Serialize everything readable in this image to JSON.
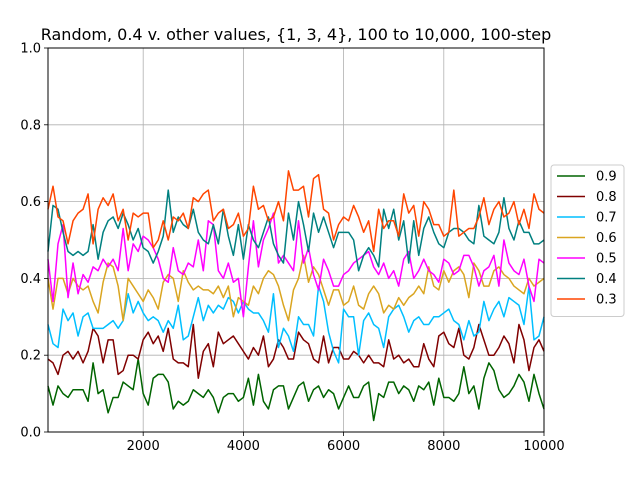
{
  "chart_data": {
    "type": "line",
    "title": "Random, 0.4 v. other values, {1, 3, 4}, 100 to 10,000, 100-step",
    "xlabel": "",
    "ylabel": "",
    "xlim": [
      100,
      10000
    ],
    "ylim": [
      0.0,
      1.0
    ],
    "x_ticks": [
      2000,
      4000,
      6000,
      8000,
      10000
    ],
    "x_tick_labels": [
      "2000",
      "4000",
      "6000",
      "8000",
      "10000"
    ],
    "y_ticks": [
      0.0,
      0.2,
      0.4,
      0.6,
      0.8,
      1.0
    ],
    "y_tick_labels": [
      "0.0",
      "0.2",
      "0.4",
      "0.6",
      "0.8",
      "1.0"
    ],
    "grid": true,
    "legend_position": "center-right-outside",
    "x": {
      "start": 100,
      "step": 100,
      "count": 100
    },
    "series": [
      {
        "name": "0.9",
        "color": "#006400",
        "values": [
          0.12,
          0.07,
          0.12,
          0.1,
          0.09,
          0.11,
          0.11,
          0.11,
          0.08,
          0.18,
          0.1,
          0.11,
          0.05,
          0.09,
          0.09,
          0.13,
          0.12,
          0.11,
          0.19,
          0.1,
          0.07,
          0.14,
          0.15,
          0.15,
          0.13,
          0.06,
          0.08,
          0.07,
          0.08,
          0.11,
          0.1,
          0.09,
          0.11,
          0.09,
          0.05,
          0.09,
          0.1,
          0.1,
          0.08,
          0.09,
          0.14,
          0.07,
          0.15,
          0.08,
          0.06,
          0.11,
          0.12,
          0.12,
          0.06,
          0.09,
          0.12,
          0.13,
          0.08,
          0.11,
          0.12,
          0.09,
          0.11,
          0.1,
          0.06,
          0.09,
          0.12,
          0.09,
          0.09,
          0.12,
          0.13,
          0.03,
          0.1,
          0.09,
          0.13,
          0.13,
          0.1,
          0.12,
          0.11,
          0.08,
          0.12,
          0.11,
          0.13,
          0.07,
          0.14,
          0.09,
          0.09,
          0.08,
          0.1,
          0.17,
          0.1,
          0.12,
          0.06,
          0.14,
          0.18,
          0.16,
          0.11,
          0.09,
          0.1,
          0.12,
          0.15,
          0.13,
          0.08,
          0.15,
          0.1,
          0.06
        ]
      },
      {
        "name": "0.8",
        "color": "#800000",
        "values": [
          0.19,
          0.18,
          0.15,
          0.2,
          0.21,
          0.19,
          0.21,
          0.18,
          0.21,
          0.27,
          0.25,
          0.18,
          0.24,
          0.24,
          0.15,
          0.16,
          0.2,
          0.2,
          0.19,
          0.24,
          0.26,
          0.23,
          0.25,
          0.21,
          0.27,
          0.19,
          0.18,
          0.18,
          0.17,
          0.28,
          0.14,
          0.21,
          0.23,
          0.17,
          0.26,
          0.23,
          0.24,
          0.25,
          0.23,
          0.21,
          0.19,
          0.22,
          0.2,
          0.25,
          0.17,
          0.19,
          0.24,
          0.22,
          0.19,
          0.19,
          0.26,
          0.24,
          0.23,
          0.19,
          0.18,
          0.25,
          0.18,
          0.22,
          0.22,
          0.19,
          0.19,
          0.21,
          0.2,
          0.18,
          0.2,
          0.18,
          0.18,
          0.17,
          0.24,
          0.19,
          0.2,
          0.18,
          0.19,
          0.17,
          0.17,
          0.23,
          0.19,
          0.17,
          0.25,
          0.26,
          0.23,
          0.22,
          0.27,
          0.2,
          0.19,
          0.22,
          0.28,
          0.24,
          0.2,
          0.2,
          0.22,
          0.25,
          0.23,
          0.18,
          0.28,
          0.24,
          0.16,
          0.22,
          0.24,
          0.21
        ]
      },
      {
        "name": "0.7",
        "color": "#00BFFF",
        "values": [
          0.28,
          0.23,
          0.22,
          0.32,
          0.29,
          0.31,
          0.25,
          0.3,
          0.31,
          0.27,
          0.27,
          0.27,
          0.28,
          0.29,
          0.27,
          0.29,
          0.36,
          0.31,
          0.34,
          0.31,
          0.29,
          0.3,
          0.29,
          0.26,
          0.29,
          0.27,
          0.33,
          0.24,
          0.25,
          0.3,
          0.35,
          0.29,
          0.33,
          0.31,
          0.33,
          0.32,
          0.35,
          0.34,
          0.31,
          0.34,
          0.32,
          0.31,
          0.31,
          0.29,
          0.26,
          0.36,
          0.22,
          0.27,
          0.25,
          0.21,
          0.3,
          0.28,
          0.28,
          0.25,
          0.38,
          0.34,
          0.26,
          0.21,
          0.18,
          0.32,
          0.3,
          0.3,
          0.2,
          0.29,
          0.31,
          0.28,
          0.27,
          0.22,
          0.3,
          0.32,
          0.33,
          0.3,
          0.26,
          0.29,
          0.3,
          0.28,
          0.28,
          0.3,
          0.3,
          0.31,
          0.32,
          0.29,
          0.28,
          0.24,
          0.29,
          0.25,
          0.26,
          0.34,
          0.29,
          0.32,
          0.34,
          0.3,
          0.35,
          0.34,
          0.33,
          0.28,
          0.38,
          0.24,
          0.25,
          0.3
        ]
      },
      {
        "name": "0.6",
        "color": "#DAA520",
        "values": [
          0.4,
          0.32,
          0.4,
          0.4,
          0.36,
          0.4,
          0.38,
          0.37,
          0.38,
          0.34,
          0.31,
          0.39,
          0.44,
          0.43,
          0.38,
          0.29,
          0.4,
          0.38,
          0.36,
          0.34,
          0.37,
          0.35,
          0.32,
          0.39,
          0.41,
          0.4,
          0.34,
          0.42,
          0.39,
          0.37,
          0.38,
          0.37,
          0.37,
          0.36,
          0.38,
          0.35,
          0.38,
          0.3,
          0.35,
          0.34,
          0.33,
          0.38,
          0.36,
          0.4,
          0.42,
          0.41,
          0.38,
          0.33,
          0.29,
          0.37,
          0.4,
          0.46,
          0.39,
          0.43,
          0.41,
          0.37,
          0.33,
          0.37,
          0.37,
          0.33,
          0.34,
          0.38,
          0.33,
          0.32,
          0.36,
          0.38,
          0.36,
          0.31,
          0.33,
          0.32,
          0.35,
          0.33,
          0.35,
          0.36,
          0.38,
          0.36,
          0.43,
          0.38,
          0.37,
          0.42,
          0.39,
          0.42,
          0.43,
          0.41,
          0.35,
          0.44,
          0.42,
          0.38,
          0.38,
          0.42,
          0.43,
          0.41,
          0.4,
          0.38,
          0.37,
          0.36,
          0.4,
          0.38,
          0.39,
          0.4
        ]
      },
      {
        "name": "0.5",
        "color": "#FF00FF",
        "values": [
          0.45,
          0.34,
          0.49,
          0.54,
          0.35,
          0.44,
          0.36,
          0.41,
          0.39,
          0.43,
          0.42,
          0.45,
          0.43,
          0.45,
          0.42,
          0.53,
          0.42,
          0.49,
          0.47,
          0.51,
          0.5,
          0.48,
          0.45,
          0.4,
          0.39,
          0.48,
          0.42,
          0.41,
          0.44,
          0.43,
          0.5,
          0.42,
          0.55,
          0.54,
          0.42,
          0.4,
          0.44,
          0.39,
          0.4,
          0.3,
          0.43,
          0.55,
          0.43,
          0.5,
          0.53,
          0.57,
          0.44,
          0.46,
          0.44,
          0.42,
          0.55,
          0.44,
          0.48,
          0.41,
          0.37,
          0.45,
          0.42,
          0.38,
          0.38,
          0.41,
          0.42,
          0.44,
          0.45,
          0.46,
          0.47,
          0.43,
          0.41,
          0.44,
          0.4,
          0.42,
          0.38,
          0.45,
          0.47,
          0.4,
          0.42,
          0.45,
          0.42,
          0.41,
          0.39,
          0.45,
          0.44,
          0.41,
          0.42,
          0.46,
          0.46,
          0.43,
          0.38,
          0.42,
          0.43,
          0.46,
          0.38,
          0.5,
          0.44,
          0.42,
          0.41,
          0.45,
          0.38,
          0.34,
          0.45,
          0.44
        ]
      },
      {
        "name": "0.4",
        "color": "#008080",
        "values": [
          0.47,
          0.59,
          0.58,
          0.52,
          0.47,
          0.46,
          0.47,
          0.46,
          0.47,
          0.54,
          0.45,
          0.52,
          0.55,
          0.56,
          0.53,
          0.57,
          0.54,
          0.5,
          0.53,
          0.48,
          0.47,
          0.44,
          0.47,
          0.51,
          0.63,
          0.52,
          0.56,
          0.54,
          0.53,
          0.58,
          0.52,
          0.5,
          0.49,
          0.54,
          0.49,
          0.58,
          0.51,
          0.46,
          0.54,
          0.45,
          0.54,
          0.5,
          0.48,
          0.52,
          0.56,
          0.49,
          0.46,
          0.44,
          0.57,
          0.5,
          0.6,
          0.54,
          0.47,
          0.57,
          0.52,
          0.56,
          0.52,
          0.48,
          0.52,
          0.52,
          0.52,
          0.5,
          0.42,
          0.46,
          0.48,
          0.46,
          0.43,
          0.58,
          0.53,
          0.58,
          0.5,
          0.55,
          0.44,
          0.55,
          0.46,
          0.53,
          0.56,
          0.52,
          0.49,
          0.48,
          0.52,
          0.53,
          0.53,
          0.52,
          0.5,
          0.49,
          0.59,
          0.51,
          0.5,
          0.49,
          0.52,
          0.61,
          0.53,
          0.5,
          0.55,
          0.52,
          0.52,
          0.49,
          0.49,
          0.5
        ]
      },
      {
        "name": "0.3",
        "color": "#FF4500",
        "values": [
          0.58,
          0.64,
          0.56,
          0.55,
          0.49,
          0.55,
          0.57,
          0.58,
          0.62,
          0.49,
          0.58,
          0.61,
          0.59,
          0.62,
          0.55,
          0.58,
          0.5,
          0.57,
          0.56,
          0.57,
          0.57,
          0.48,
          0.5,
          0.55,
          0.5,
          0.56,
          0.55,
          0.57,
          0.53,
          0.61,
          0.6,
          0.62,
          0.63,
          0.55,
          0.57,
          0.58,
          0.53,
          0.54,
          0.57,
          0.51,
          0.53,
          0.64,
          0.58,
          0.59,
          0.55,
          0.56,
          0.6,
          0.55,
          0.68,
          0.63,
          0.63,
          0.64,
          0.56,
          0.66,
          0.67,
          0.58,
          0.57,
          0.5,
          0.54,
          0.56,
          0.55,
          0.59,
          0.56,
          0.52,
          0.55,
          0.47,
          0.58,
          0.53,
          0.55,
          0.55,
          0.51,
          0.62,
          0.57,
          0.59,
          0.51,
          0.6,
          0.58,
          0.54,
          0.54,
          0.51,
          0.52,
          0.63,
          0.51,
          0.52,
          0.53,
          0.53,
          0.56,
          0.61,
          0.54,
          0.58,
          0.6,
          0.56,
          0.57,
          0.6,
          0.54,
          0.58,
          0.53,
          0.62,
          0.58,
          0.57
        ]
      }
    ]
  }
}
